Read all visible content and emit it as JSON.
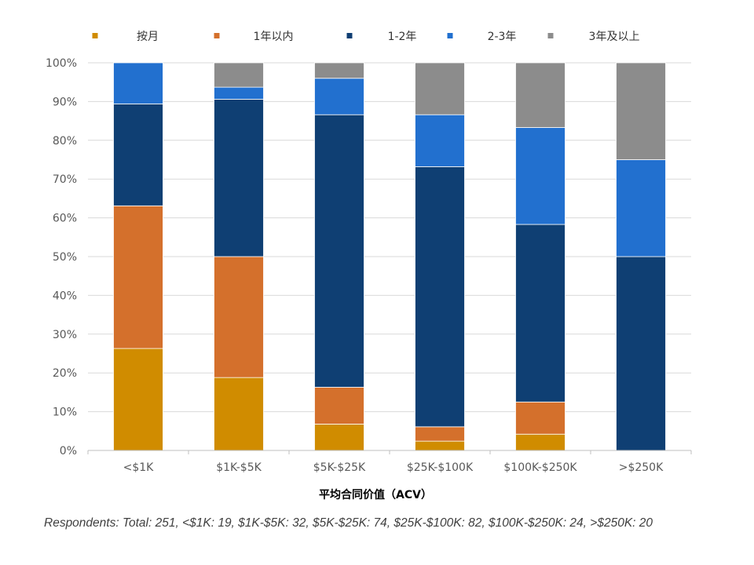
{
  "chart_data": {
    "type": "bar",
    "stacked": true,
    "title": "",
    "xlabel": "平均合同价值（ACV）",
    "ylabel": "",
    "ylim": [
      0,
      100
    ],
    "y_ticks": [
      "0%",
      "10%",
      "20%",
      "30%",
      "40%",
      "50%",
      "60%",
      "70%",
      "80%",
      "90%",
      "100%"
    ],
    "grid": true,
    "legend_position": "top",
    "categories": [
      "<$1K",
      "$1K-$5K",
      "$5K-$25K",
      "$25K-$100K",
      "$100K-$250K",
      ">$250K"
    ],
    "series": [
      {
        "name": "按月",
        "color": "#D08C00",
        "values": [
          26.3,
          18.8,
          6.8,
          2.4,
          4.2,
          0
        ]
      },
      {
        "name": "1年以内",
        "color": "#D4702C",
        "values": [
          36.8,
          31.2,
          9.5,
          3.7,
          8.3,
          0
        ]
      },
      {
        "name": "1-2年",
        "color": "#0F3F73",
        "values": [
          26.3,
          40.6,
          70.3,
          67.1,
          45.8,
          50.0
        ]
      },
      {
        "name": "2-3年",
        "color": "#2270CF",
        "values": [
          10.6,
          3.1,
          9.4,
          13.4,
          25.0,
          25.0
        ]
      },
      {
        "name": "3年及以上",
        "color": "#8C8C8C",
        "values": [
          0,
          6.3,
          4.0,
          13.4,
          16.7,
          25.0
        ]
      }
    ]
  },
  "footnote": "Respondents: Total: 251, <$1K: 19, $1K-$5K: 32, $5K-$25K: 74, $25K-$100K: 82, $100K-$250K: 24, >$250K: 20"
}
